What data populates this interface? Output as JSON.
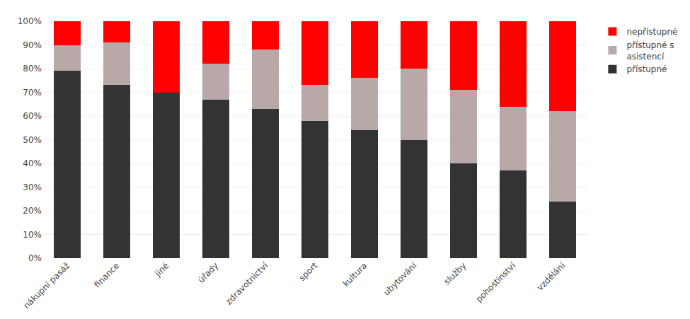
{
  "chart_data": {
    "type": "bar",
    "stacked": true,
    "categories": [
      "nákupní pasáž",
      "finance",
      "jiné",
      "úřady",
      "zdravotnictví",
      "sport",
      "kultura",
      "ubytování",
      "služby",
      "pohostinství",
      "vzdělání"
    ],
    "series": [
      {
        "name": "přístupné",
        "color": "#333333",
        "values": [
          79,
          73,
          70,
          67,
          63,
          58,
          54,
          50,
          40,
          37,
          24
        ]
      },
      {
        "name": "přístupné s\nasistencí",
        "color": "#b8a8a8",
        "values": [
          11,
          18,
          0,
          15,
          25,
          15,
          22,
          30,
          31,
          27,
          38
        ]
      },
      {
        "name": "nepřístupné",
        "color": "#ff0000",
        "values": [
          10,
          9,
          30,
          18,
          12,
          27,
          24,
          20,
          29,
          36,
          38
        ]
      }
    ],
    "ylim": [
      0,
      100
    ],
    "yticks": [
      {
        "value": 0,
        "label": "0%"
      },
      {
        "value": 10,
        "label": "10%"
      },
      {
        "value": 20,
        "label": "20%"
      },
      {
        "value": 30,
        "label": "30%"
      },
      {
        "value": 40,
        "label": "40%"
      },
      {
        "value": 50,
        "label": "50%"
      },
      {
        "value": 60,
        "label": "60%"
      },
      {
        "value": 70,
        "label": "70%"
      },
      {
        "value": 80,
        "label": "80%"
      },
      {
        "value": 90,
        "label": "90%"
      },
      {
        "value": 100,
        "label": "100%"
      }
    ],
    "grid": true,
    "legend": "right"
  }
}
